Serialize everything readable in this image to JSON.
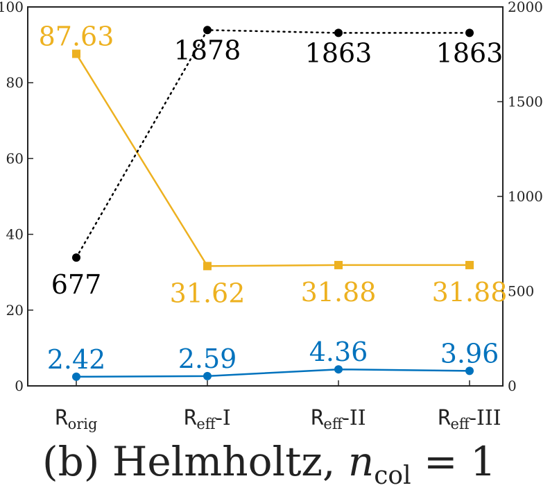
{
  "chart_data": {
    "type": "line",
    "categories": [
      "R_orig",
      "R_eff-I",
      "R_eff-II",
      "R_eff-III"
    ],
    "category_labels": [
      {
        "base": "R",
        "sub": "orig",
        "suffix": ""
      },
      {
        "base": "R",
        "sub": "eff",
        "suffix": "-I"
      },
      {
        "base": "R",
        "sub": "eff",
        "suffix": "-II"
      },
      {
        "base": "R",
        "sub": "eff",
        "suffix": "-III"
      }
    ],
    "left_axis": {
      "ylim": [
        0,
        100
      ],
      "ticks": [
        "0",
        "20",
        "40",
        "60",
        "80",
        "100"
      ]
    },
    "right_axis": {
      "ylim": [
        0,
        2000
      ],
      "ticks": [
        "0",
        "500",
        "1000",
        "1500",
        "2000"
      ]
    },
    "grid": false,
    "series": [
      {
        "axis": "left",
        "color": "#EDB120",
        "marker": "square",
        "line_style": "solid",
        "values": [
          87.63,
          31.62,
          31.88,
          31.88
        ],
        "labels": [
          "87.63",
          "31.62",
          "31.88",
          "31.88"
        ]
      },
      {
        "axis": "left",
        "color": "#0072BD",
        "marker": "circle",
        "line_style": "solid",
        "values": [
          2.42,
          2.59,
          4.36,
          3.96
        ],
        "labels": [
          "2.42",
          "2.59",
          "4.36",
          "3.96"
        ]
      },
      {
        "axis": "right",
        "color": "#000000",
        "marker": "circle",
        "line_style": "dotted",
        "values": [
          677,
          1878,
          1863,
          1863
        ],
        "labels": [
          "677",
          "1878",
          "1863",
          "1863"
        ]
      }
    ],
    "caption": {
      "prefix": "(b) Helmholtz, ",
      "var": "n",
      "sub": "col",
      "suffix": " = 1"
    }
  }
}
